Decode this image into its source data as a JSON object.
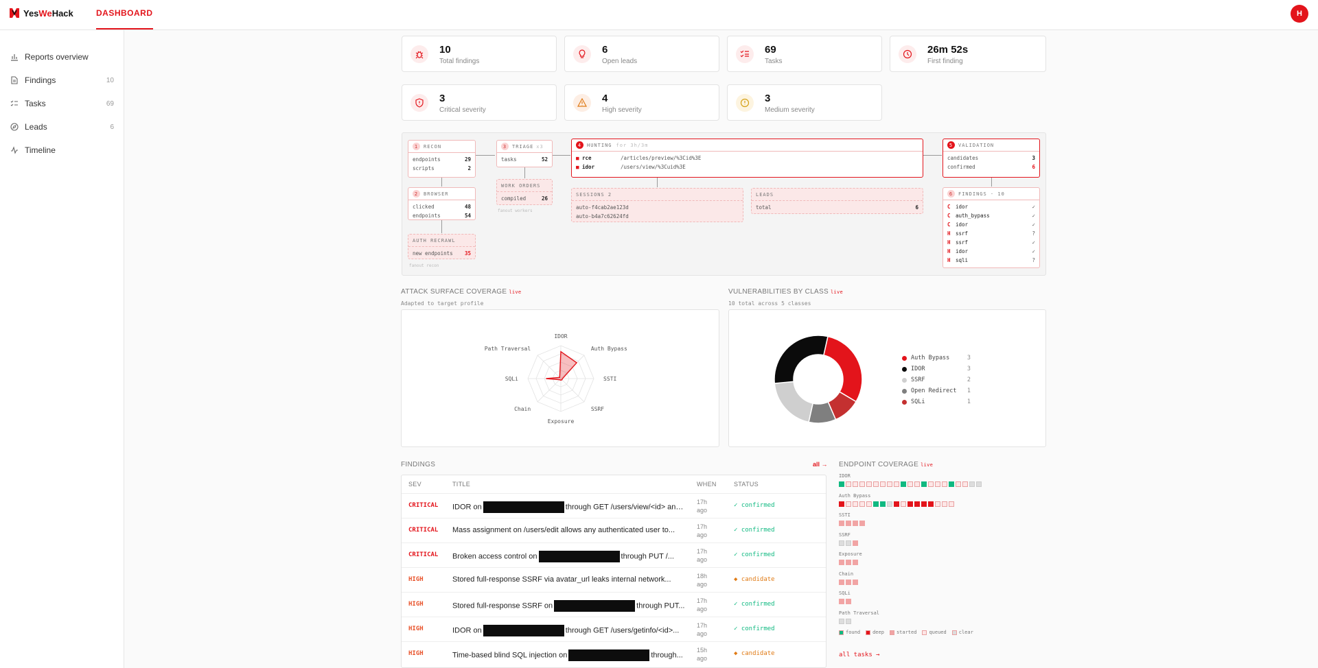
{
  "app": {
    "brand_prefix": "Yes",
    "brand_accent": "We",
    "brand_suffix": "Hack",
    "tab": "DASHBOARD",
    "avatar": "H"
  },
  "sidebar": {
    "items": [
      {
        "label": "Reports overview",
        "count": "",
        "icon": "bar-chart-icon"
      },
      {
        "label": "Findings",
        "count": "10",
        "icon": "document-icon"
      },
      {
        "label": "Tasks",
        "count": "69",
        "icon": "checklist-icon"
      },
      {
        "label": "Leads",
        "count": "6",
        "icon": "compass-icon"
      },
      {
        "label": "Timeline",
        "count": "",
        "icon": "pulse-icon"
      }
    ]
  },
  "stats": [
    {
      "value": "10",
      "label": "Total findings",
      "icon": "bug-icon"
    },
    {
      "value": "6",
      "label": "Open leads",
      "icon": "bulb-icon"
    },
    {
      "value": "69",
      "label": "Tasks",
      "icon": "checklist-icon"
    },
    {
      "value": "26m 52s",
      "label": "First finding",
      "icon": "clock-icon"
    },
    {
      "value": "3",
      "label": "Critical severity",
      "icon": "shield-icon"
    },
    {
      "value": "4",
      "label": "High severity",
      "icon": "warning-icon"
    },
    {
      "value": "3",
      "label": "Medium severity",
      "icon": "info-circle-icon"
    }
  ],
  "flow": {
    "recon": {
      "num": "1",
      "title": "RECON",
      "rows": [
        [
          "endpoints",
          "29"
        ],
        [
          "scripts",
          "2"
        ]
      ]
    },
    "browser": {
      "num": "2",
      "title": "BROWSER",
      "rows": [
        [
          "clicked",
          "48"
        ],
        [
          "endpoints",
          "54"
        ]
      ]
    },
    "authrecrawl": {
      "title": "AUTH RECRAWL",
      "rows": [
        [
          "new endpoints",
          "35"
        ]
      ],
      "foot": "fanout recon"
    },
    "triage": {
      "num": "3",
      "title": "TRIAGE",
      "sub": "x3",
      "rows": [
        [
          "tasks",
          "52"
        ]
      ]
    },
    "workorders": {
      "title": "WORK ORDERS",
      "rows": [
        [
          "compiled",
          "26"
        ]
      ],
      "foot": "fanout workers"
    },
    "hunting": {
      "num": "4",
      "title": "HUNTING",
      "sub": "for 3h/3m",
      "rows": [
        [
          "rce",
          "/articles/preview/%3Cid%3E"
        ],
        [
          "idor",
          "/users/view/%3Cuid%3E"
        ]
      ]
    },
    "sessions": {
      "title": "SESSIONS 2",
      "rows": [
        "auto-f4cab2ae123d",
        "auto-b4a7c62624fd"
      ]
    },
    "leads": {
      "title": "LEADS",
      "rows": [
        [
          "total",
          "6"
        ]
      ]
    },
    "validation": {
      "num": "5",
      "title": "VALIDATION",
      "rows": [
        [
          "candidates",
          "3"
        ],
        [
          "confirmed",
          "6"
        ]
      ]
    },
    "findings": {
      "num": "6",
      "title": "FINDINGS · 10",
      "rows": [
        [
          "C",
          "idor",
          "✓"
        ],
        [
          "C",
          "auth_bypass",
          "✓"
        ],
        [
          "C",
          "idor",
          "✓"
        ],
        [
          "H",
          "ssrf",
          "?"
        ],
        [
          "H",
          "ssrf",
          "✓"
        ],
        [
          "H",
          "idor",
          "✓"
        ],
        [
          "H",
          "sqli",
          "?"
        ]
      ]
    }
  },
  "radar": {
    "title": "ATTACK SURFACE COVERAGE",
    "live": "live",
    "subtitle": "Adapted to target profile",
    "axes": [
      "IDOR",
      "Auth Bypass",
      "SSTI",
      "SSRF",
      "Exposure",
      "Chain",
      "SQLi",
      "Path Traversal"
    ],
    "values": [
      0.82,
      0.68,
      0.05,
      0.05,
      0.05,
      0.05,
      0.45,
      0.05
    ]
  },
  "chart_data": {
    "type": "pie",
    "title": "VULNERABILITIES BY CLASS",
    "subtitle": "10 total across 5 classes",
    "categories": [
      "Auth Bypass",
      "IDOR",
      "SSRF",
      "Open Redirect",
      "SQLi"
    ],
    "values": [
      3,
      3,
      2,
      1,
      1
    ],
    "colors": [
      "#e3141b",
      "#0b0b0b",
      "#cfcfcf",
      "#7f7f7f",
      "#c43030"
    ],
    "order_on_ring": [
      "Auth Bypass",
      "SQLi",
      "Open Redirect",
      "SSRF",
      "IDOR"
    ]
  },
  "findings": {
    "title": "FINDINGS",
    "all_link": "all →",
    "headers": {
      "sev": "SEV",
      "title": "TITLE",
      "when": "WHEN",
      "status": "STATUS"
    },
    "rows": [
      {
        "sev": "CRITICAL",
        "pre": "IDOR on",
        "redacted": true,
        "post": "through GET /users/view/<id> and...",
        "when": "17h ago",
        "status": "✓ confirmed"
      },
      {
        "sev": "CRITICAL",
        "pre": "Mass assignment on /users/edit allows any authenticated user to...",
        "redacted": false,
        "post": "",
        "when": "17h ago",
        "status": "✓ confirmed"
      },
      {
        "sev": "CRITICAL",
        "pre": "Broken access control on",
        "redacted": true,
        "post": "through PUT /...",
        "when": "17h ago",
        "status": "✓ confirmed"
      },
      {
        "sev": "HIGH",
        "pre": "Stored full-response SSRF via avatar_url leaks internal network...",
        "redacted": false,
        "post": "",
        "when": "18h ago",
        "status": "◆ candidate"
      },
      {
        "sev": "HIGH",
        "pre": "Stored full-response SSRF on",
        "redacted": true,
        "post": "through PUT...",
        "when": "17h ago",
        "status": "✓ confirmed"
      },
      {
        "sev": "HIGH",
        "pre": "IDOR on",
        "redacted": true,
        "post": "through GET /users/getinfo/<id>...",
        "when": "17h ago",
        "status": "✓ confirmed"
      },
      {
        "sev": "HIGH",
        "pre": "Time-based blind SQL injection on",
        "redacted": true,
        "post": "through...",
        "when": "15h ago",
        "status": "◆ candidate"
      }
    ]
  },
  "endpoint_coverage": {
    "title": "ENDPOINT COVERAGE",
    "live": "live",
    "groups": [
      {
        "label": "IDOR",
        "cells": "fqqqqqqqqfqqfqqqfqqcc"
      },
      {
        "label": "Auth Bypass",
        "cells": "dqqqqffcdqddddqqq"
      },
      {
        "label": "SSTI",
        "cells": "ssss"
      },
      {
        "label": "SSRF",
        "cells": "ccs"
      },
      {
        "label": "Exposure",
        "cells": "sss"
      },
      {
        "label": "Chain",
        "cells": "sss"
      },
      {
        "label": "SQLi",
        "cells": "ss"
      },
      {
        "label": "Path Traversal",
        "cells": "cc"
      }
    ],
    "legend": [
      "found",
      "deep",
      "started",
      "queued",
      "clear"
    ],
    "all_tasks": "all tasks →"
  },
  "colors": {
    "accent": "#e3141b",
    "confirmed": "#10b981",
    "candidate": "#e07b16",
    "critical": "#e3141b",
    "high": "#e8522a"
  }
}
